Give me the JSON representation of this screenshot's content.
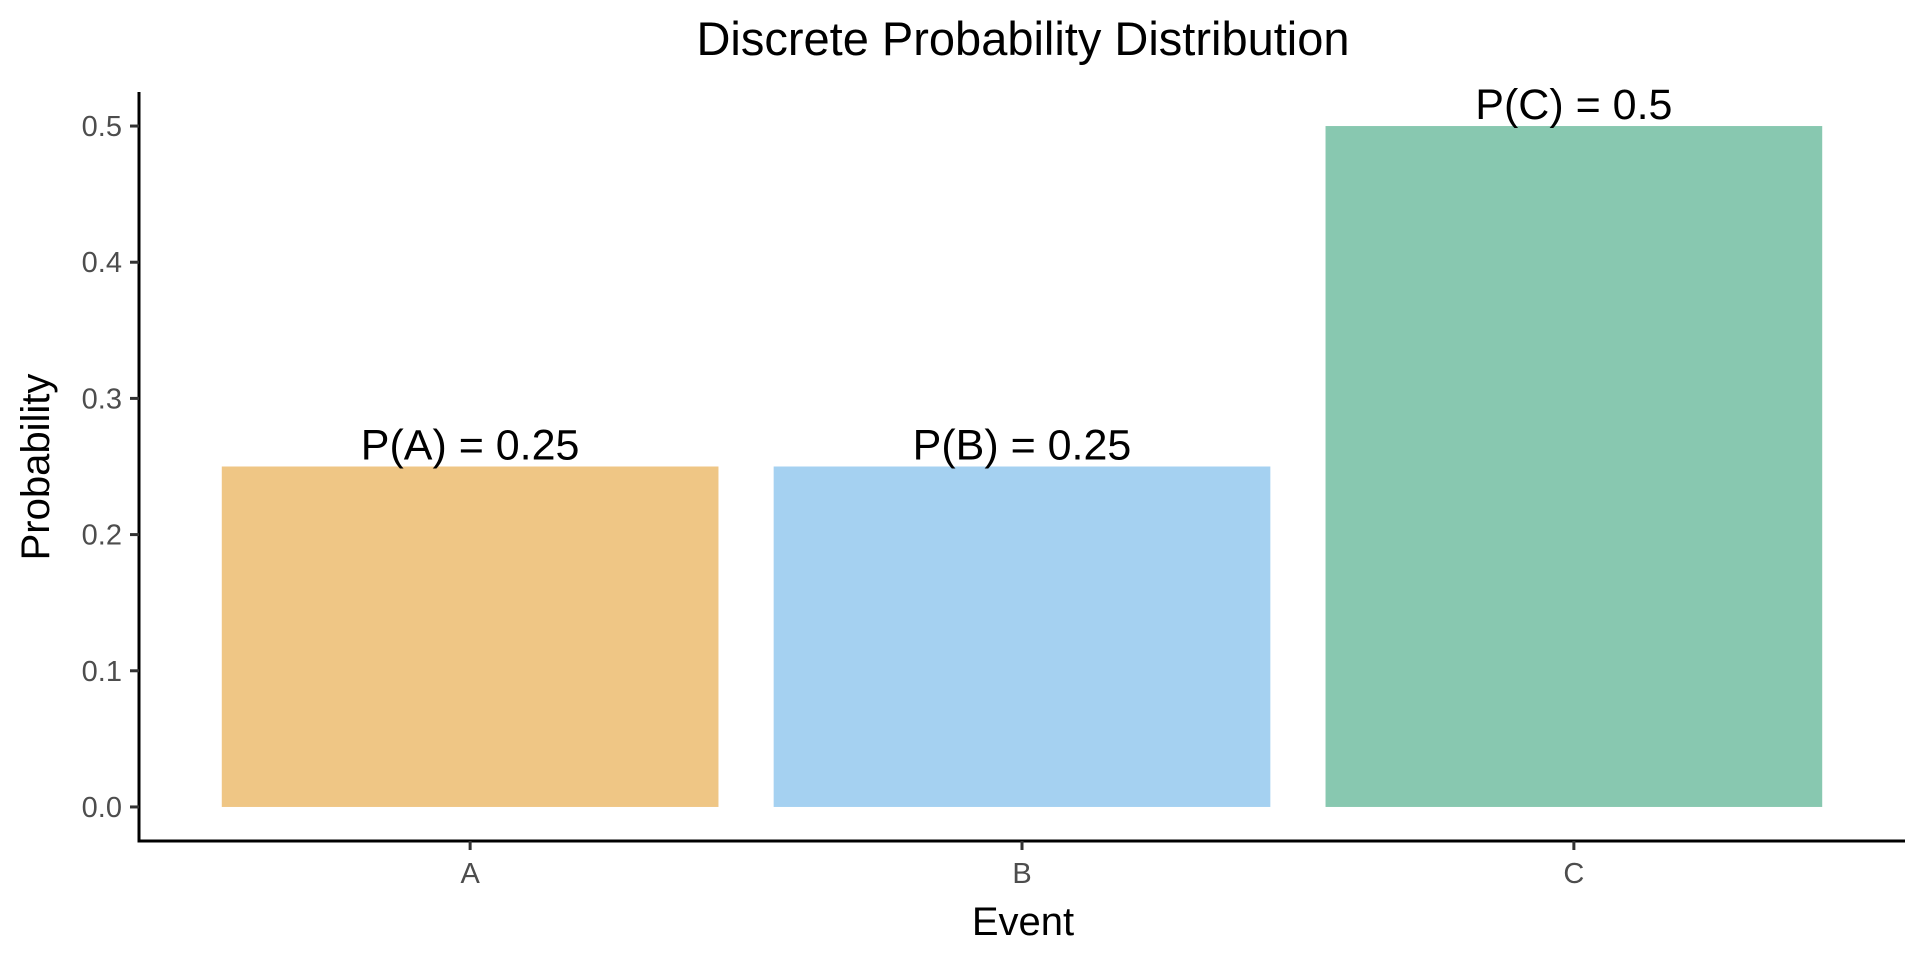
{
  "chart_data": {
    "type": "bar",
    "title": "Discrete Probability Distribution",
    "xlabel": "Event",
    "ylabel": "Probability",
    "categories": [
      "A",
      "B",
      "C"
    ],
    "values": [
      0.25,
      0.25,
      0.5
    ],
    "bar_labels": [
      "P(A) = 0.25",
      "P(B) = 0.25",
      "P(C) = 0.5"
    ],
    "colors": [
      "#efc685",
      "#a5d1f1",
      "#88c8b0"
    ],
    "ylim": [
      -0.025,
      0.525
    ],
    "yticks": [
      0.0,
      0.1,
      0.2,
      0.3,
      0.4,
      0.5
    ],
    "ytick_labels": [
      "0.0",
      "0.1",
      "0.2",
      "0.3",
      "0.4",
      "0.5"
    ],
    "grid": false,
    "legend": "none"
  }
}
